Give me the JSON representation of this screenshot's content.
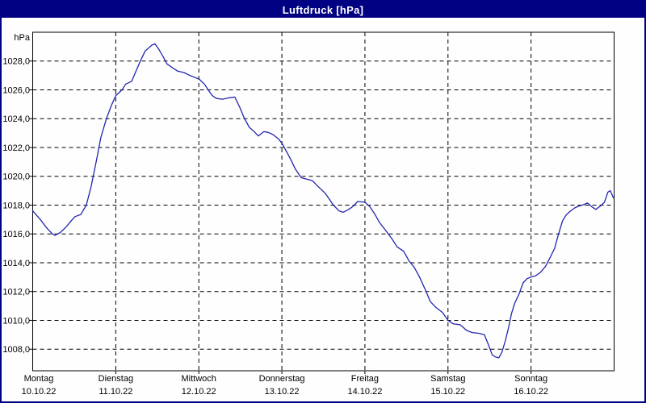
{
  "window": {
    "title": "Luftdruck [hPa]",
    "title_bar_color": "#000082",
    "title_text_color": "#ffffff",
    "background_color": "#fdfefd"
  },
  "chart_data": {
    "type": "line",
    "title": "Luftdruck [hPa]",
    "unit_label": "hPa",
    "grid": {
      "style": "dashed",
      "color": "#000000",
      "dash": "5 4"
    },
    "axis_color": "#000000",
    "y_axis": {
      "min": 1006.5,
      "max": 1030.0,
      "tick_values": [
        1028,
        1026,
        1024,
        1022,
        1020,
        1018,
        1016,
        1014,
        1012,
        1010,
        1008
      ],
      "tick_labels": [
        "1028,0",
        "1026,0",
        "1024,0",
        "1022,0",
        "1020,0",
        "1018,0",
        "1016,0",
        "1014,0",
        "1012,0",
        "1010,0",
        "1008,0"
      ]
    },
    "x_axis": {
      "hours_total": 168,
      "days": [
        {
          "name": "Montag",
          "date": "10.10.22"
        },
        {
          "name": "Dienstag",
          "date": "11.10.22"
        },
        {
          "name": "Mittwoch",
          "date": "12.10.22"
        },
        {
          "name": "Donnerstag",
          "date": "13.10.22"
        },
        {
          "name": "Freitag",
          "date": "14.10.22"
        },
        {
          "name": "Samstag",
          "date": "15.10.22"
        },
        {
          "name": "Sonntag",
          "date": "16.10.22"
        }
      ]
    },
    "series": [
      {
        "name": "Luftdruck",
        "color": "#2525b0",
        "points_hours_hpa": [
          [
            0,
            1017.6
          ],
          [
            2.2,
            1017.0
          ],
          [
            4.1,
            1016.4
          ],
          [
            5.7,
            1016.0
          ],
          [
            6.4,
            1015.9
          ],
          [
            8,
            1016.1
          ],
          [
            9.7,
            1016.5
          ],
          [
            11.1,
            1016.9
          ],
          [
            12.2,
            1017.2
          ],
          [
            13.9,
            1017.35
          ],
          [
            15.5,
            1018.0
          ],
          [
            16.9,
            1019.3
          ],
          [
            18.5,
            1021.2
          ],
          [
            19.7,
            1022.7
          ],
          [
            21.3,
            1024.0
          ],
          [
            22.7,
            1024.9
          ],
          [
            24,
            1025.6
          ],
          [
            25.8,
            1026.0
          ],
          [
            26.9,
            1026.4
          ],
          [
            28.6,
            1026.6
          ],
          [
            30.2,
            1027.5
          ],
          [
            31.1,
            1028.0
          ],
          [
            32.5,
            1028.7
          ],
          [
            34.4,
            1029.1
          ],
          [
            35.3,
            1029.2
          ],
          [
            36.5,
            1028.8
          ],
          [
            37.7,
            1028.3
          ],
          [
            38.8,
            1027.8
          ],
          [
            40,
            1027.6
          ],
          [
            41.9,
            1027.3
          ],
          [
            43.7,
            1027.2
          ],
          [
            45.4,
            1027.0
          ],
          [
            47,
            1026.85
          ],
          [
            48.1,
            1026.75
          ],
          [
            49.6,
            1026.4
          ],
          [
            50.7,
            1026.0
          ],
          [
            51.9,
            1025.6
          ],
          [
            53.1,
            1025.4
          ],
          [
            54.9,
            1025.35
          ],
          [
            56.8,
            1025.45
          ],
          [
            58.4,
            1025.5
          ],
          [
            59.8,
            1024.8
          ],
          [
            61.2,
            1024.0
          ],
          [
            62.6,
            1023.4
          ],
          [
            64,
            1023.1
          ],
          [
            65.2,
            1022.8
          ],
          [
            66.8,
            1023.1
          ],
          [
            68,
            1023.05
          ],
          [
            69.4,
            1022.9
          ],
          [
            71,
            1022.6
          ],
          [
            72,
            1022.3
          ],
          [
            73.6,
            1021.6
          ],
          [
            74.5,
            1021.2
          ],
          [
            75.9,
            1020.5
          ],
          [
            77.6,
            1019.9
          ],
          [
            79.2,
            1019.8
          ],
          [
            80.8,
            1019.7
          ],
          [
            82.2,
            1019.35
          ],
          [
            84.6,
            1018.8
          ],
          [
            86.9,
            1018.0
          ],
          [
            88.5,
            1017.6
          ],
          [
            89.7,
            1017.5
          ],
          [
            91.3,
            1017.7
          ],
          [
            92.5,
            1017.9
          ],
          [
            93.9,
            1018.25
          ],
          [
            96,
            1018.2
          ],
          [
            97.4,
            1017.9
          ],
          [
            98.8,
            1017.4
          ],
          [
            100.2,
            1016.8
          ],
          [
            101.8,
            1016.3
          ],
          [
            103.7,
            1015.7
          ],
          [
            105.3,
            1015.1
          ],
          [
            107.2,
            1014.8
          ],
          [
            108.8,
            1014.1
          ],
          [
            110.2,
            1013.7
          ],
          [
            111.8,
            1013.0
          ],
          [
            113.5,
            1012.1
          ],
          [
            114.9,
            1011.3
          ],
          [
            116.5,
            1010.9
          ],
          [
            118.4,
            1010.55
          ],
          [
            120,
            1010.0
          ],
          [
            121.6,
            1009.75
          ],
          [
            123.5,
            1009.7
          ],
          [
            125.4,
            1009.3
          ],
          [
            127,
            1009.15
          ],
          [
            128.9,
            1009.1
          ],
          [
            130.5,
            1009.0
          ],
          [
            131.7,
            1008.3
          ],
          [
            132.8,
            1007.6
          ],
          [
            133.8,
            1007.45
          ],
          [
            134.7,
            1007.4
          ],
          [
            135.6,
            1007.8
          ],
          [
            136.6,
            1008.6
          ],
          [
            137.5,
            1009.5
          ],
          [
            138.4,
            1010.5
          ],
          [
            139.3,
            1011.2
          ],
          [
            140.5,
            1011.8
          ],
          [
            141.7,
            1012.6
          ],
          [
            142.9,
            1012.9
          ],
          [
            144,
            1013.0
          ],
          [
            145.4,
            1013.1
          ],
          [
            146.8,
            1013.35
          ],
          [
            148.2,
            1013.75
          ],
          [
            149.6,
            1014.4
          ],
          [
            150.8,
            1015.0
          ],
          [
            151.9,
            1015.95
          ],
          [
            153.1,
            1016.9
          ],
          [
            154.1,
            1017.3
          ],
          [
            155.2,
            1017.55
          ],
          [
            156.6,
            1017.8
          ],
          [
            158,
            1017.95
          ],
          [
            159.4,
            1018.05
          ],
          [
            160.3,
            1018.15
          ],
          [
            161.5,
            1017.9
          ],
          [
            162.7,
            1017.7
          ],
          [
            164.1,
            1017.95
          ],
          [
            165.2,
            1018.2
          ],
          [
            166.2,
            1018.9
          ],
          [
            166.9,
            1019.0
          ],
          [
            167.8,
            1018.5
          ]
        ]
      }
    ]
  }
}
